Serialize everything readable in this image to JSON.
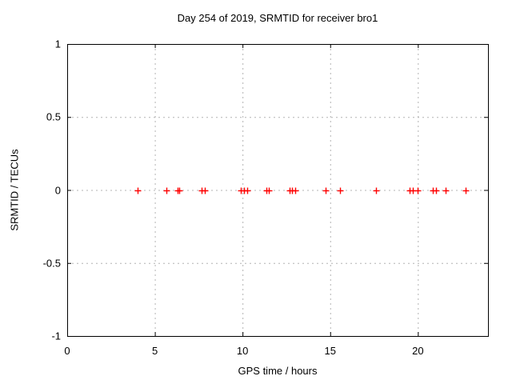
{
  "chart_data": {
    "type": "scatter",
    "title": "Day 254 of 2019, SRMTID for receiver bro1",
    "xlabel": "GPS time / hours",
    "ylabel": "SRMTID / TECUs",
    "xlim": [
      0,
      24
    ],
    "ylim": [
      -1,
      1
    ],
    "xticks": [
      0,
      5,
      10,
      15,
      20
    ],
    "xtick_labels": [
      "0",
      "5",
      "10",
      "15",
      "20"
    ],
    "yticks": [
      1,
      0.5,
      0,
      -0.5,
      -1
    ],
    "ytick_labels": [
      "1",
      "0.5",
      "0",
      "-0.5",
      "-1"
    ],
    "grid": true,
    "legend": "none",
    "grid_color": "#b3b3b3",
    "axis_color": "#000000",
    "marker": "plus",
    "marker_color": "#ff0000",
    "marker_size": 9,
    "series": [
      {
        "name": "SRMTID",
        "x": [
          4.03,
          5.67,
          6.3,
          6.38,
          7.68,
          7.83,
          9.9,
          10.07,
          10.25,
          11.35,
          11.48,
          12.67,
          12.83,
          13.02,
          14.72,
          15.56,
          17.6,
          19.51,
          19.73,
          19.97,
          20.83,
          21.03,
          21.56,
          22.71
        ],
        "y": [
          0,
          0,
          0,
          0,
          0,
          0,
          0,
          0,
          0,
          0,
          0,
          0,
          0,
          0,
          0,
          0,
          0,
          0,
          0,
          0,
          0,
          0,
          0,
          0
        ]
      }
    ]
  }
}
